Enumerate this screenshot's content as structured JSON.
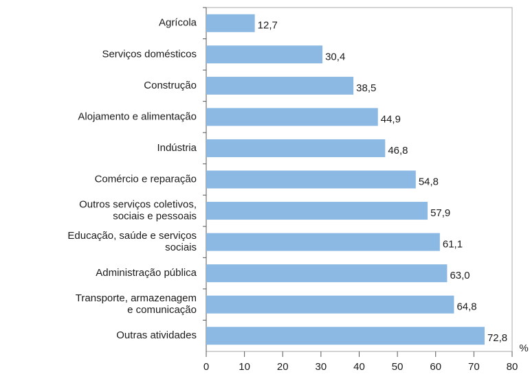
{
  "chart_data": {
    "type": "bar",
    "orientation": "horizontal",
    "categories": [
      "Agrícola",
      "Serviços domésticos",
      "Construção",
      "Alojamento e alimentação",
      "Indústria",
      "Comércio e reparação",
      "Outros serviços coletivos,\nsociais e pessoais",
      "Educação, saúde e serviços\nsociais",
      "Administração pública",
      "Transporte, armazenagem\ne comunicação",
      "Outras atividades"
    ],
    "values": [
      12.7,
      30.4,
      38.5,
      44.9,
      46.8,
      54.8,
      57.9,
      61.1,
      63.0,
      64.8,
      72.8
    ],
    "value_labels": [
      "12,7",
      "30,4",
      "38,5",
      "44,9",
      "46,8",
      "54,8",
      "57,9",
      "61,1",
      "63,0",
      "64,8",
      "72,8"
    ],
    "color": "#8cb9e3",
    "xlim": [
      0,
      80
    ],
    "xticks": [
      0,
      10,
      20,
      30,
      40,
      50,
      60,
      70,
      80
    ],
    "x_unit": "%"
  }
}
